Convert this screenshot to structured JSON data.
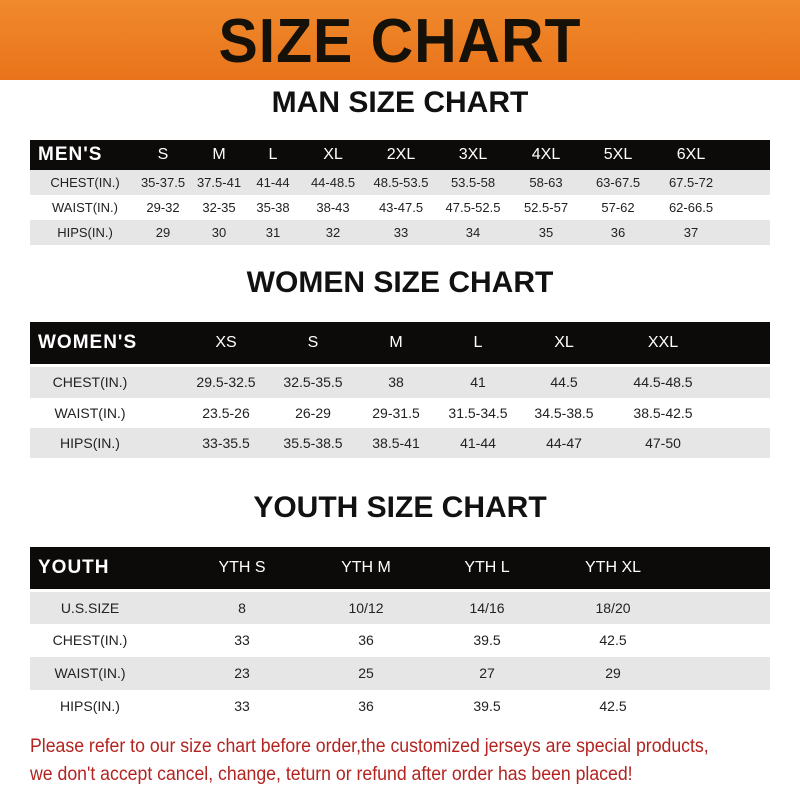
{
  "title": "SIZE CHART",
  "tables": [
    {
      "title": "MAN SIZE CHART",
      "header": [
        "MEN'S",
        "S",
        "M",
        "L",
        "XL",
        "2XL",
        "3XL",
        "4XL",
        "5XL",
        "6XL"
      ],
      "rows": [
        [
          "CHEST(IN.)",
          "35-37.5",
          "37.5-41",
          "41-44",
          "44-48.5",
          "48.5-53.5",
          "53.5-58",
          "58-63",
          "63-67.5",
          "67.5-72"
        ],
        [
          "WAIST(IN.)",
          "29-32",
          "32-35",
          "35-38",
          "38-43",
          "43-47.5",
          "47.5-52.5",
          "52.5-57",
          "57-62",
          "62-66.5"
        ],
        [
          "HIPS(IN.)",
          "29",
          "30",
          "31",
          "32",
          "33",
          "34",
          "35",
          "36",
          "37"
        ]
      ]
    },
    {
      "title": "WOMEN SIZE CHART",
      "header": [
        "WOMEN'S",
        "XS",
        "S",
        "M",
        "L",
        "XL",
        "XXL"
      ],
      "rows": [
        [
          "CHEST(IN.)",
          "29.5-32.5",
          "32.5-35.5",
          "38",
          "41",
          "44.5",
          "44.5-48.5"
        ],
        [
          "WAIST(IN.)",
          "23.5-26",
          "26-29",
          "29-31.5",
          "31.5-34.5",
          "34.5-38.5",
          "38.5-42.5"
        ],
        [
          "HIPS(IN.)",
          "33-35.5",
          "35.5-38.5",
          "38.5-41",
          "41-44",
          "44-47",
          "47-50"
        ]
      ]
    },
    {
      "title": "YOUTH SIZE CHART",
      "header": [
        "YOUTH",
        "YTH S",
        "YTH M",
        "YTH L",
        "YTH XL"
      ],
      "rows": [
        [
          "U.S.SIZE",
          "8",
          "10/12",
          "14/16",
          "18/20"
        ],
        [
          "CHEST(IN.)",
          "33",
          "36",
          "39.5",
          "42.5"
        ],
        [
          "WAIST(IN.)",
          "23",
          "25",
          "27",
          "29"
        ],
        [
          "HIPS(IN.)",
          "33",
          "36",
          "39.5",
          "42.5"
        ]
      ]
    }
  ],
  "notice": [
    "Please refer to our size chart before order,the customized jerseys are special products,",
    "we don't accept cancel, change, teturn or refund after order has been placed!"
  ],
  "colors": {
    "banner": "#ec7d22",
    "header_row": "#0d0a0a",
    "notice": "#b3231f"
  }
}
